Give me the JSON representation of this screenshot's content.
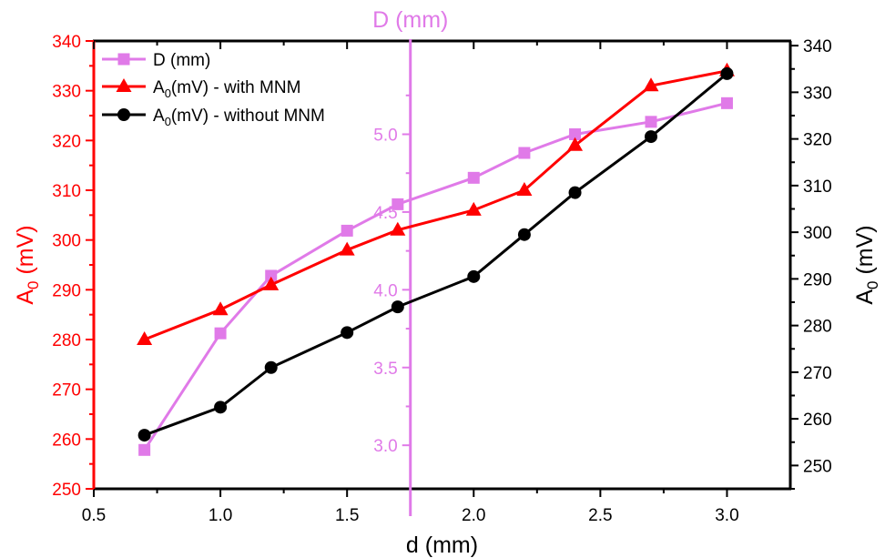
{
  "chart_data": {
    "type": "line",
    "xlabel": "d (mm)",
    "xlim": [
      0.5,
      3.25
    ],
    "xticks": [
      "0.5",
      "1.0",
      "1.5",
      "2.0",
      "2.5",
      "3.0"
    ],
    "left_axis": {
      "label_main": "A",
      "label_sub": "0",
      "label_rest": " (mV)",
      "ylim": [
        250,
        340
      ],
      "ticks": [
        "250",
        "260",
        "270",
        "280",
        "290",
        "300",
        "310",
        "320",
        "330",
        "340"
      ],
      "color": "#ff0000"
    },
    "right_axis": {
      "label_main": "A",
      "label_sub": "0",
      "label_rest": " (mV)",
      "ylim": [
        245,
        341
      ],
      "ticks": [
        "250",
        "260",
        "270",
        "280",
        "290",
        "300",
        "310",
        "320",
        "330",
        "340"
      ],
      "color": "#000000"
    },
    "d_axis": {
      "label": "D (mm)",
      "x_position": 1.75,
      "ylim": [
        2.72,
        5.6
      ],
      "ticks": [
        "3.0",
        "3.5",
        "4.0",
        "4.5",
        "5.0"
      ],
      "color": "#e07ae8"
    },
    "series": [
      {
        "name": "D (mm)",
        "axis": "d",
        "color": "#e07ae8",
        "marker": "square",
        "x": [
          0.7,
          1.0,
          1.2,
          1.5,
          1.7,
          2.0,
          2.2,
          2.4,
          2.7,
          3.0
        ],
        "values": [
          2.97,
          3.72,
          4.09,
          4.38,
          4.55,
          4.72,
          4.88,
          5.0,
          5.08,
          5.2
        ]
      },
      {
        "name_main": "A",
        "name_sub": "0",
        "name_rest": "(mV) -  with MNM",
        "axis": "left",
        "color": "#ff0000",
        "marker": "triangle",
        "x": [
          0.7,
          1.0,
          1.2,
          1.5,
          1.7,
          2.0,
          2.2,
          2.4,
          2.7,
          3.0
        ],
        "values": [
          280,
          286,
          291,
          298,
          302,
          306,
          310,
          319,
          331,
          334
        ]
      },
      {
        "name_main": "A",
        "name_sub": "0",
        "name_rest": "(mV) -  without MNM",
        "axis": "right",
        "color": "#000000",
        "marker": "circle",
        "x": [
          0.7,
          1.0,
          1.2,
          1.5,
          1.7,
          2.0,
          2.2,
          2.4,
          2.7,
          3.0
        ],
        "values": [
          256.5,
          262.5,
          271,
          278.5,
          284,
          290.5,
          299.5,
          308.5,
          320.5,
          334
        ]
      }
    ],
    "legend_position": "top-left",
    "grid": false
  }
}
